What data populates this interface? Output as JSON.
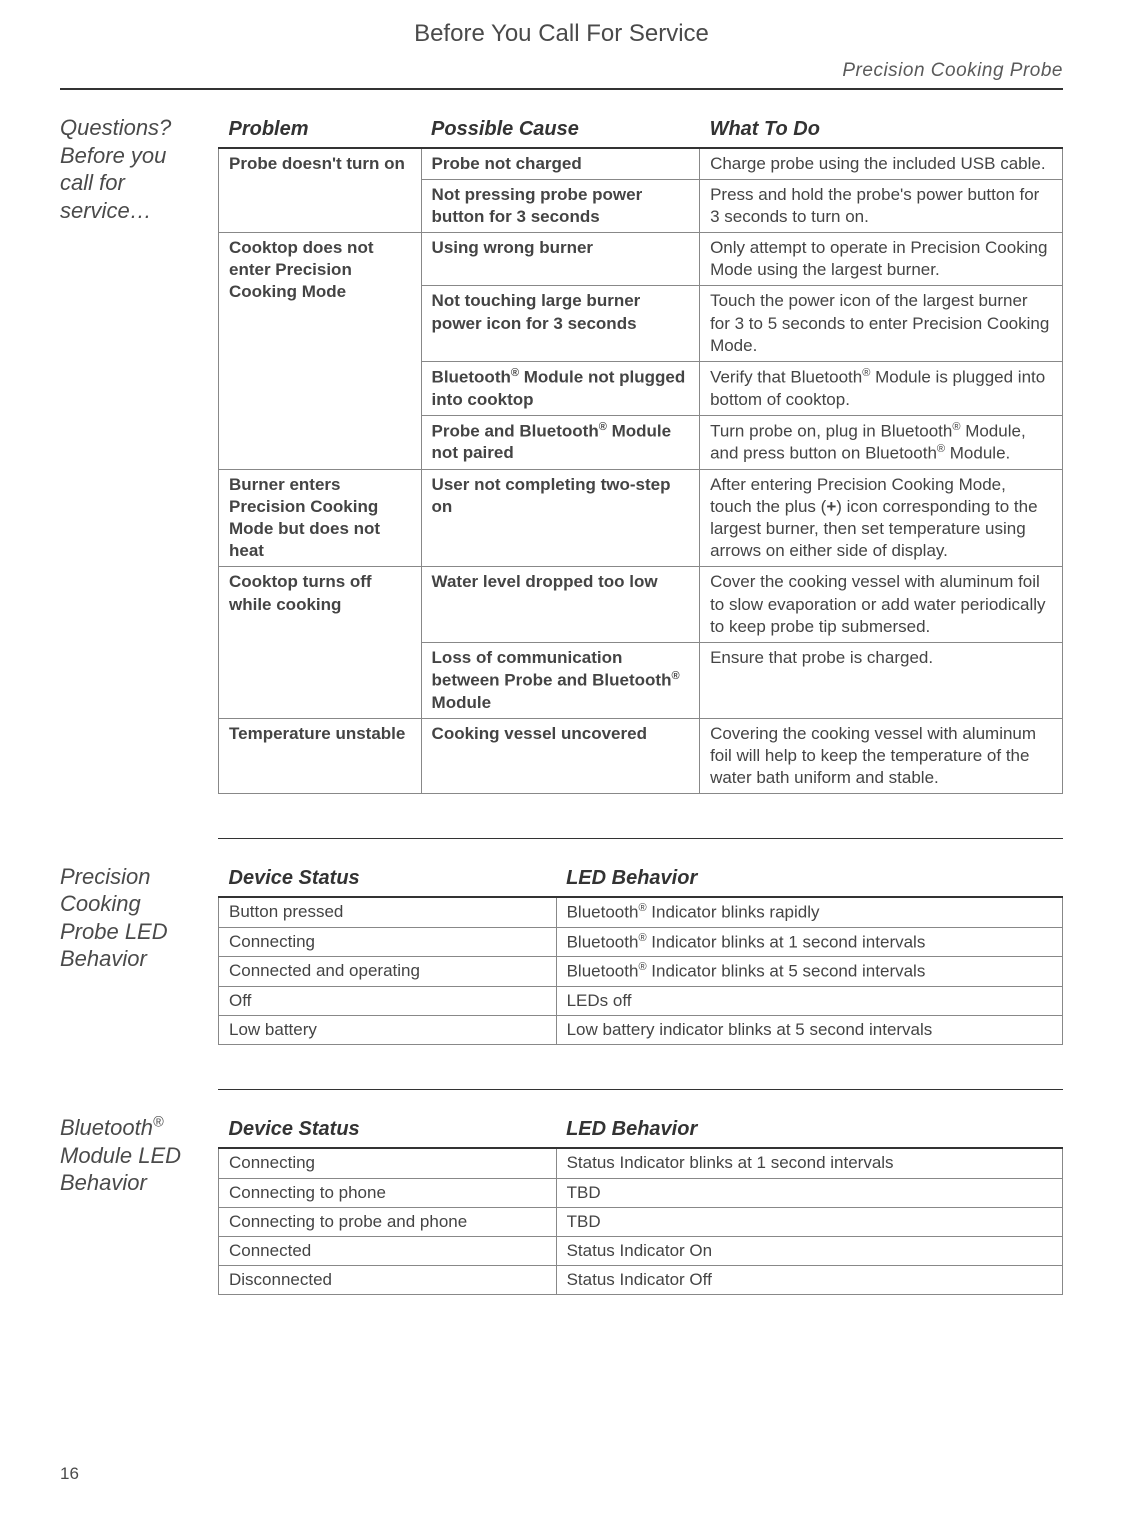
{
  "header": {
    "title": "Before You Call For Service",
    "subtitle": "Precision Cooking Probe"
  },
  "page_number": "16",
  "troubleshoot": {
    "side_label": "Questions? Before you call for service…",
    "columns": [
      "Problem",
      "Possible Cause",
      "What To Do"
    ],
    "groups": [
      {
        "problem": "Probe doesn't turn on",
        "rows": [
          {
            "cause": "Probe not charged",
            "todo": "Charge probe using the included USB cable."
          },
          {
            "cause": "Not pressing probe power button for 3 seconds",
            "todo": "Press and hold the probe's power button for 3 seconds to turn on."
          }
        ]
      },
      {
        "problem": "Cooktop does not enter Precision Cooking Mode",
        "rows": [
          {
            "cause": "Using wrong burner",
            "todo": "Only attempt to operate in Precision Cooking Mode using the largest burner."
          },
          {
            "cause": "Not touching large burner power icon for 3 seconds",
            "todo": "Touch the power icon of the largest burner for 3 to 5 seconds to enter Precision Cooking Mode."
          },
          {
            "cause_html": "Bluetooth<sup>®</sup> Module not plugged into cooktop",
            "todo_html": "Verify that Bluetooth<sup>®</sup> Module is plugged into bottom of cooktop."
          },
          {
            "cause_html": "Probe and Bluetooth<sup>®</sup> Module not paired",
            "todo_html": "Turn probe on, plug in Bluetooth<sup>®</sup> Module, and press button on Bluetooth<sup>®</sup> Module."
          }
        ]
      },
      {
        "problem": "Burner enters Precision Cooking Mode but does not heat",
        "rows": [
          {
            "cause": "User not completing two-step on",
            "todo_html": "After entering Precision Cooking Mode, touch the plus (<b>+</b>) icon corresponding to the largest burner, then set temperature using arrows on either side of display."
          }
        ]
      },
      {
        "problem": "Cooktop turns off while cooking",
        "rows": [
          {
            "cause": "Water level dropped too low",
            "todo": "Cover the cooking vessel with aluminum foil to slow evaporation or add water periodically to keep probe tip submersed."
          },
          {
            "cause_html": "Loss of communication between Probe and Bluetooth<sup>®</sup> Module",
            "todo": "Ensure that probe is charged."
          }
        ]
      },
      {
        "problem": "Temperature unstable",
        "rows": [
          {
            "cause": "Cooking vessel uncovered",
            "todo": "Covering the cooking vessel with aluminum foil will help to keep the temperature of the water bath uniform and stable."
          }
        ]
      }
    ]
  },
  "probe_led": {
    "side_label": "Precision Cooking Probe LED Behavior",
    "columns": [
      "Device Status",
      "LED Behavior"
    ],
    "rows": [
      {
        "status": "Button pressed",
        "behavior_html": "Bluetooth<sup>®</sup> Indicator blinks rapidly"
      },
      {
        "status": "Connecting",
        "behavior_html": "Bluetooth<sup>®</sup> Indicator blinks at 1 second intervals"
      },
      {
        "status": "Connected and operating",
        "behavior_html": "Bluetooth<sup>®</sup> Indicator blinks at 5 second intervals"
      },
      {
        "status": "Off",
        "behavior": "LEDs off"
      },
      {
        "status": "Low battery",
        "behavior": "Low battery indicator blinks at 5 second intervals"
      }
    ]
  },
  "module_led": {
    "side_label_html": "Bluetooth<sup>®</sup> Module LED Behavior",
    "columns": [
      "Device Status",
      "LED Behavior"
    ],
    "rows": [
      {
        "status": "Connecting",
        "behavior": "Status Indicator blinks at 1 second intervals"
      },
      {
        "status": "Connecting to phone",
        "behavior": "TBD"
      },
      {
        "status": "Connecting to probe and phone",
        "behavior": "TBD"
      },
      {
        "status": "Connected",
        "behavior": "Status Indicator On"
      },
      {
        "status": "Disconnected",
        "behavior": "Status Indicator Off"
      }
    ]
  }
}
